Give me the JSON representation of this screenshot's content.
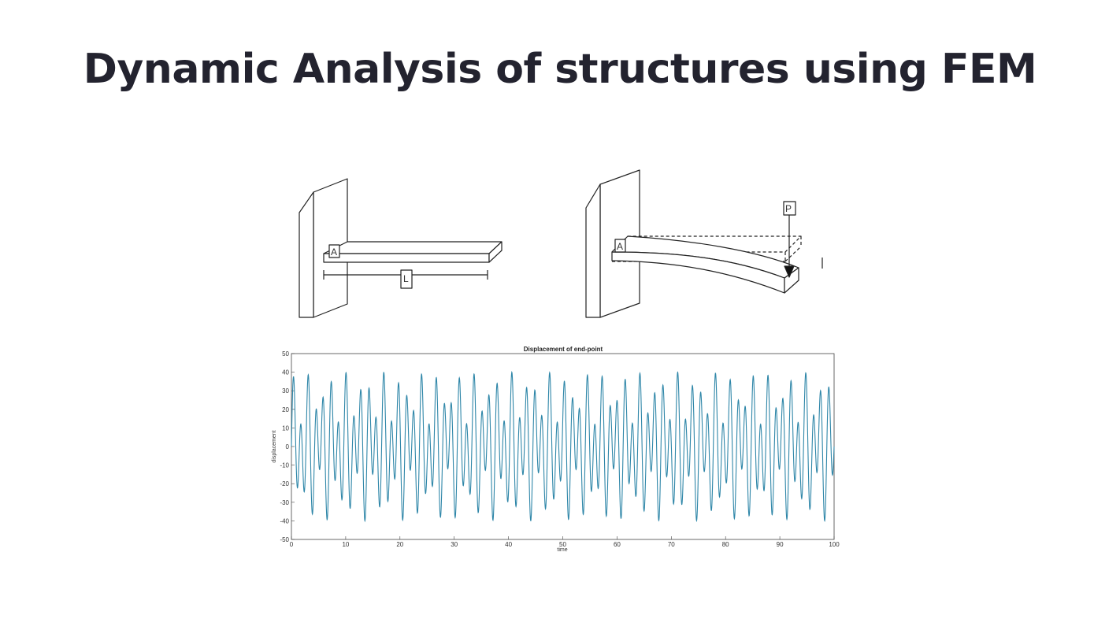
{
  "slide": {
    "title": "Dynamic Analysis of structures using FEM"
  },
  "diagram": {
    "left_point_label": "A",
    "length_label": "L",
    "right_point_label": "A",
    "load_label": "P"
  },
  "chart_data": {
    "type": "line",
    "title": "Displacement of end-point",
    "xlabel": "time",
    "ylabel": "displacement",
    "xlim": [
      0,
      100
    ],
    "ylim": [
      -50,
      50
    ],
    "xticks": [
      0,
      10,
      20,
      30,
      40,
      50,
      60,
      70,
      80,
      90,
      100
    ],
    "yticks": [
      -50,
      -40,
      -30,
      -20,
      -10,
      0,
      10,
      20,
      30,
      40,
      50
    ],
    "grid": false,
    "series": [
      {
        "color": "#2e86a8",
        "signal": {
          "t_start": 0,
          "t_end": 100,
          "samples": 3000,
          "components": [
            {
              "amplitude": 26,
              "frequency": 0.72,
              "phase": 0
            },
            {
              "amplitude": 14,
              "frequency": 0.425,
              "phase": 0
            }
          ]
        }
      }
    ]
  }
}
